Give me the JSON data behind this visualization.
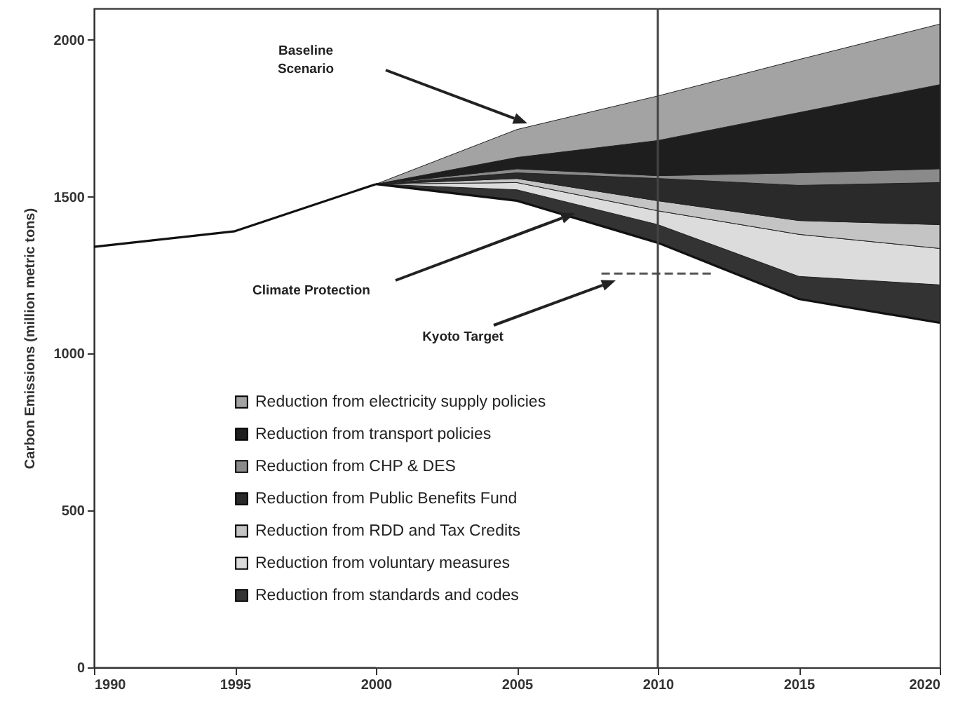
{
  "chart_data": {
    "type": "area",
    "ylabel": "Carbon Emissions (million metric tons)",
    "x": [
      2000,
      2005,
      2010,
      2015,
      2020
    ],
    "series": [
      {
        "type": "line",
        "color": "#111111",
        "x": [
          1990,
          1995,
          2000
        ],
        "values": [
          1340,
          1390,
          1540
        ]
      },
      {
        "color": "#ffffff",
        "values": [
          1540,
          1487,
          1353,
          1174,
          1098
        ]
      },
      {
        "name": "Reduction from standards and codes",
        "color": "#333333",
        "values": [
          0,
          35,
          58,
          72,
          121
        ]
      },
      {
        "name": "Reduction from voluntary measures",
        "color": "#dcdcdc",
        "values": [
          0,
          23,
          44,
          134,
          116
        ]
      },
      {
        "name": "Reduction from RDD and Tax Credits",
        "color": "#c4c4c4",
        "values": [
          0,
          13,
          32,
          44,
          76
        ]
      },
      {
        "name": "Reduction from Public Benefits Fund",
        "color": "#2a2a2a",
        "values": [
          0,
          18,
          71,
          112,
          134
        ]
      },
      {
        "name": "Reduction from CHP & DES",
        "color": "#8a8a8a",
        "values": [
          0,
          13,
          9,
          40,
          44
        ]
      },
      {
        "name": "Reduction from transport policies",
        "color": "#1e1e1e",
        "values": [
          0,
          36,
          112,
          192,
          268
        ]
      },
      {
        "name": "Reduction from electricity supply policies",
        "color": "#a3a3a3",
        "values": [
          0,
          89,
          142,
          169,
          193
        ]
      },
      {
        "type": "line",
        "line_style": "dashed",
        "color": "#555555",
        "x": [
          2008,
          2012
        ],
        "values": [
          1255,
          1255
        ]
      }
    ],
    "stacked": true,
    "xlim": [
      1990,
      2020
    ],
    "xticks": [
      1990,
      1995,
      2000,
      2005,
      2010,
      2015,
      2020
    ],
    "ylim": [
      0,
      2100
    ],
    "yticks": [
      0,
      500,
      1000,
      1500,
      2000
    ],
    "ref_lines": [
      {
        "axis": "x",
        "value": 2010,
        "color": "#444444"
      }
    ],
    "annotations": [
      "Baseline Scenario",
      "Climate Protection",
      "Kyoto Target"
    ],
    "legend": "bottom left",
    "grid": false
  }
}
